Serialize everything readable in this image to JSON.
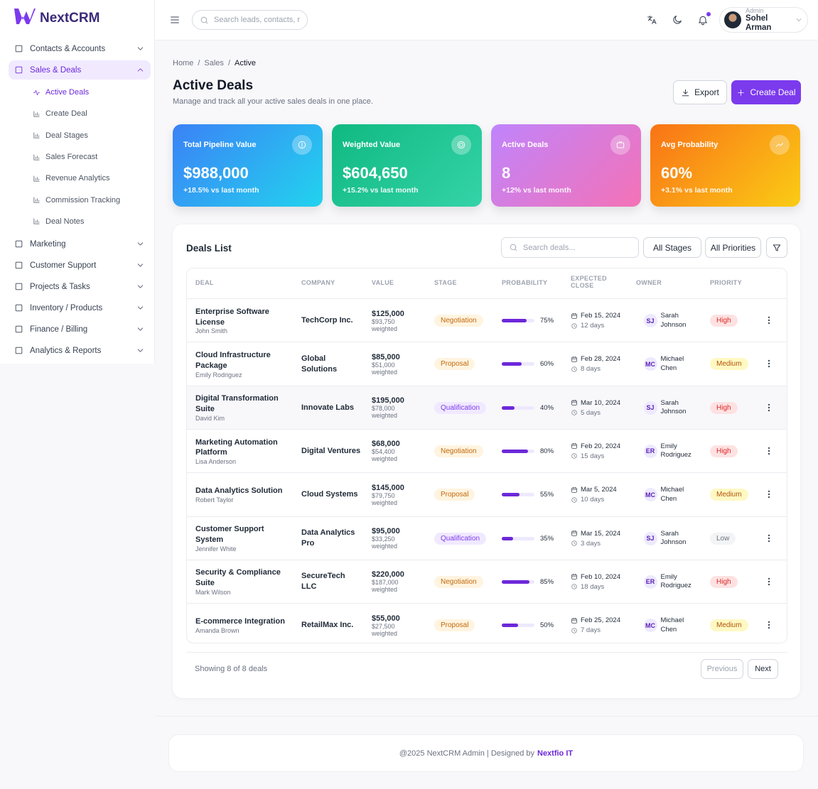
{
  "brand": "NextCRM",
  "sidebar": {
    "items": [
      {
        "label": "Contacts & Accounts"
      },
      {
        "label": "Sales & Deals",
        "active": true,
        "children": [
          "Active Deals",
          "Create Deal",
          "Deal Stages",
          "Sales Forecast",
          "Revenue Analytics",
          "Commission Tracking",
          "Deal Notes"
        ]
      },
      {
        "label": "Marketing"
      },
      {
        "label": "Customer Support"
      },
      {
        "label": "Projects & Tasks"
      },
      {
        "label": "Inventory / Products"
      },
      {
        "label": "Finance / Billing"
      },
      {
        "label": "Analytics & Reports"
      }
    ]
  },
  "header": {
    "search_placeholder": "Search leads, contacts, r",
    "user_role": "Admin",
    "user_name": "Sohel Arman"
  },
  "breadcrumb": [
    "Home",
    "Sales",
    "Active"
  ],
  "page": {
    "title": "Active Deals",
    "subtitle": "Manage and track all your active sales deals in one place.",
    "export_button": "Export",
    "create_button": "Create Deal"
  },
  "stats": [
    {
      "label": "Total Pipeline Value",
      "value": "$988,000",
      "change": "+18.5% vs last month"
    },
    {
      "label": "Weighted Value",
      "value": "$604,650",
      "change": "+15.2% vs last month"
    },
    {
      "label": "Active Deals",
      "value": "8",
      "change": "+12% vs last month"
    },
    {
      "label": "Avg Probability",
      "value": "60%",
      "change": "+3.1% vs last month"
    }
  ],
  "deals": {
    "title": "Deals List",
    "search_placeholder": "Search deals...",
    "stage_filter": "All Stages",
    "priority_filter": "All Priorities",
    "columns": [
      "DEAL",
      "COMPANY",
      "VALUE",
      "STAGE",
      "PROBABILITY",
      "EXPECTED CLOSE",
      "OWNER",
      "PRIORITY"
    ],
    "weighted_suffix": "weighted",
    "rows": [
      {
        "deal": "Enterprise Software License",
        "contact": "John Smith",
        "company": "TechCorp Inc.",
        "value": "$125,000",
        "weighted": "$93,750",
        "stage": "Negotiation",
        "probability": 75,
        "probability_label": "75%",
        "close_date": "Feb 15, 2024",
        "days_left": "12 days",
        "owner_initials": "SJ",
        "owner": "Sarah Johnson",
        "priority": "High"
      },
      {
        "deal": "Cloud Infrastructure Package",
        "contact": "Emily Rodriguez",
        "company": "Global Solutions",
        "value": "$85,000",
        "weighted": "$51,000",
        "stage": "Proposal",
        "probability": 60,
        "probability_label": "60%",
        "close_date": "Feb 28, 2024",
        "days_left": "8 days",
        "owner_initials": "MC",
        "owner": "Michael Chen",
        "priority": "Medium"
      },
      {
        "deal": "Digital Transformation Suite",
        "contact": "David Kim",
        "company": "Innovate Labs",
        "value": "$195,000",
        "weighted": "$78,000",
        "stage": "Qualification",
        "probability": 40,
        "probability_label": "40%",
        "close_date": "Mar 10, 2024",
        "days_left": "5 days",
        "owner_initials": "SJ",
        "owner": "Sarah Johnson",
        "priority": "High"
      },
      {
        "deal": "Marketing Automation Platform",
        "contact": "Lisa Anderson",
        "company": "Digital Ventures",
        "value": "$68,000",
        "weighted": "$54,400",
        "stage": "Negotiation",
        "probability": 80,
        "probability_label": "80%",
        "close_date": "Feb 20, 2024",
        "days_left": "15 days",
        "owner_initials": "ER",
        "owner": "Emily Rodriguez",
        "priority": "High"
      },
      {
        "deal": "Data Analytics Solution",
        "contact": "Robert Taylor",
        "company": "Cloud Systems",
        "value": "$145,000",
        "weighted": "$79,750",
        "stage": "Proposal",
        "probability": 55,
        "probability_label": "55%",
        "close_date": "Mar 5, 2024",
        "days_left": "10 days",
        "owner_initials": "MC",
        "owner": "Michael Chen",
        "priority": "Medium"
      },
      {
        "deal": "Customer Support System",
        "contact": "Jennifer White",
        "company": "Data Analytics Pro",
        "value": "$95,000",
        "weighted": "$33,250",
        "stage": "Qualification",
        "probability": 35,
        "probability_label": "35%",
        "close_date": "Mar 15, 2024",
        "days_left": "3 days",
        "owner_initials": "SJ",
        "owner": "Sarah Johnson",
        "priority": "Low"
      },
      {
        "deal": "Security & Compliance Suite",
        "contact": "Mark Wilson",
        "company": "SecureTech LLC",
        "value": "$220,000",
        "weighted": "$187,000",
        "stage": "Negotiation",
        "probability": 85,
        "probability_label": "85%",
        "close_date": "Feb 10, 2024",
        "days_left": "18 days",
        "owner_initials": "ER",
        "owner": "Emily Rodriguez",
        "priority": "High"
      },
      {
        "deal": "E-commerce Integration",
        "contact": "Amanda Brown",
        "company": "RetailMax Inc.",
        "value": "$55,000",
        "weighted": "$27,500",
        "stage": "Proposal",
        "probability": 50,
        "probability_label": "50%",
        "close_date": "Feb 25, 2024",
        "days_left": "7 days",
        "owner_initials": "MC",
        "owner": "Michael Chen",
        "priority": "Medium"
      }
    ],
    "showing": "Showing 8 of 8 deals",
    "previous": "Previous",
    "next": "Next"
  },
  "footer": {
    "text": "@2025 NextCRM Admin | Designed by",
    "link": "Nextfio IT"
  }
}
